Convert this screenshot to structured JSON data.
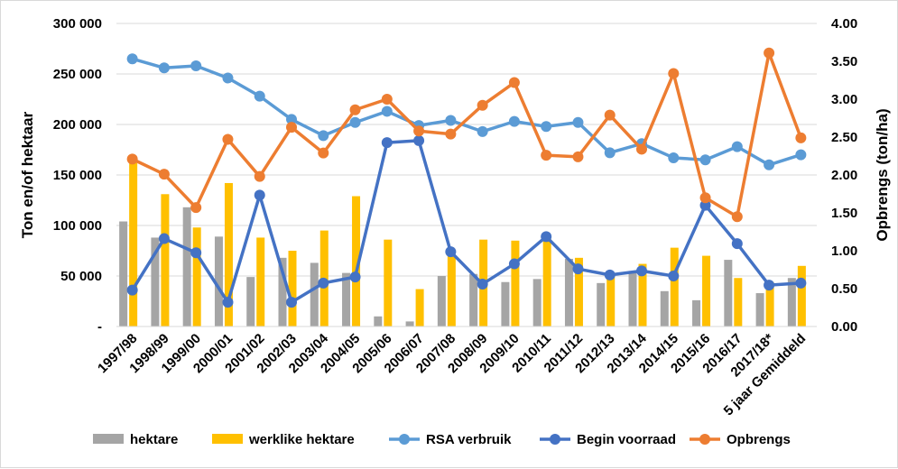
{
  "chart_data": {
    "type": "bar",
    "categories": [
      "1997/98",
      "1998/99",
      "1999/00",
      "2000/01",
      "2001/02",
      "2002/03",
      "2003/04",
      "2004/05",
      "2005/06",
      "2006/07",
      "2007/08",
      "2008/09",
      "2009/10",
      "2010/11",
      "2011/12",
      "2012/13",
      "2013/14",
      "2014/15",
      "2015/16",
      "2016/17",
      "2017/18*",
      "5 jaar Gemiddeld"
    ],
    "y_left": {
      "label": "Ton en/of hektaar",
      "range": [
        0,
        300000
      ],
      "ticks": [
        0,
        50000,
        100000,
        150000,
        200000,
        250000,
        300000
      ],
      "tick_labels": [
        "-",
        "50 000",
        "100 000",
        "150 000",
        "200 000",
        "250 000",
        "300 000"
      ]
    },
    "y_right": {
      "label": "Opbrengs (ton/ha)",
      "range": [
        0,
        4
      ],
      "ticks": [
        0,
        0.5,
        1,
        1.5,
        2,
        2.5,
        3,
        3.5,
        4
      ],
      "tick_labels": [
        "0.00",
        "0.50",
        "1.00",
        "1.50",
        "2.00",
        "2.50",
        "3.00",
        "3.50",
        "4.00"
      ]
    },
    "series": [
      {
        "name": "hektare",
        "kind": "bar",
        "axis": "left",
        "color": "#a5a5a5",
        "values": [
          104000,
          88000,
          118000,
          89000,
          49000,
          68000,
          63000,
          53000,
          10000,
          5000,
          50000,
          52000,
          44000,
          47000,
          67000,
          43000,
          55000,
          35000,
          26000,
          66000,
          33000,
          48000
        ]
      },
      {
        "name": "werklike hektare",
        "kind": "bar",
        "axis": "left",
        "color": "#ffc000",
        "values": [
          162000,
          131000,
          98000,
          142000,
          88000,
          75000,
          95000,
          129000,
          86000,
          37000,
          70000,
          86000,
          85000,
          87000,
          68000,
          50000,
          62000,
          78000,
          70000,
          48000,
          44000,
          60000
        ]
      },
      {
        "name": "RSA verbruik",
        "kind": "line",
        "axis": "left",
        "color": "#5b9bd5",
        "values": [
          265000,
          256000,
          258000,
          246000,
          228000,
          205000,
          189000,
          202000,
          213000,
          199000,
          204000,
          193000,
          203000,
          198000,
          202000,
          172000,
          181000,
          167000,
          165000,
          178000,
          160000,
          170000
        ]
      },
      {
        "name": "Begin voorraad",
        "kind": "line",
        "axis": "left",
        "color": "#4472c4",
        "values": [
          36000,
          87000,
          73000,
          24000,
          130000,
          24000,
          43000,
          49000,
          182000,
          184000,
          74000,
          42000,
          62000,
          89000,
          57000,
          51000,
          55000,
          50000,
          120000,
          82000,
          41000,
          43000
        ]
      },
      {
        "name": "Opbrengs",
        "kind": "line",
        "axis": "right",
        "color": "#ed7d31",
        "values": [
          2.21,
          2.01,
          1.57,
          2.47,
          1.98,
          2.63,
          2.29,
          2.86,
          3.0,
          2.58,
          2.54,
          2.92,
          3.22,
          2.26,
          2.24,
          2.79,
          2.34,
          3.34,
          1.7,
          1.45,
          3.61,
          2.49
        ]
      }
    ],
    "legend_position": "bottom",
    "grid": "horizontal"
  }
}
